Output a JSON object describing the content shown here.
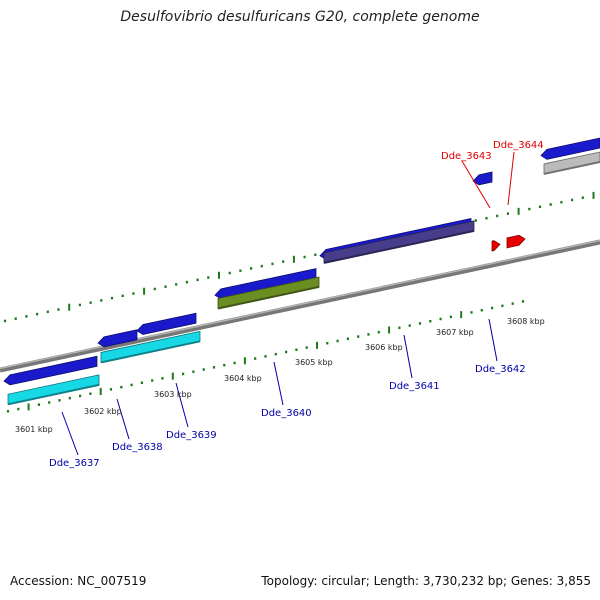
{
  "title": "Desulfovibrio desulfuricans G20, complete genome",
  "footer": {
    "accession": "Accession: NC_007519",
    "summary": "Topology: circular; Length: 3,730,232 bp; Genes: 3,855"
  },
  "colors": {
    "backbone": "#8a8a8a",
    "tick": "#1c7a1c",
    "gene_blue": "#1a1acc",
    "gene_cyan": "#17d9e6",
    "gene_olive": "#6b8e23",
    "gene_slate": "#483d8b",
    "gene_red": "#e60000",
    "gene_gray": "#bbbbbb",
    "label_blue": "#0000aa",
    "label_red": "#dd0000"
  },
  "scale": {
    "ticks": [
      "3601 kbp",
      "3602 kbp",
      "3603 kbp",
      "3604 kbp",
      "3605 kbp",
      "3606 kbp",
      "3607 kbp",
      "3608 kbp"
    ]
  },
  "genes": [
    {
      "label": "Dde_3637",
      "color": "label_blue"
    },
    {
      "label": "Dde_3638",
      "color": "label_blue"
    },
    {
      "label": "Dde_3639",
      "color": "label_blue"
    },
    {
      "label": "Dde_3640",
      "color": "label_blue"
    },
    {
      "label": "Dde_3641",
      "color": "label_blue"
    },
    {
      "label": "Dde_3642",
      "color": "label_blue"
    },
    {
      "label": "Dde_3643",
      "color": "label_red"
    },
    {
      "label": "Dde_3644",
      "color": "label_red"
    }
  ]
}
